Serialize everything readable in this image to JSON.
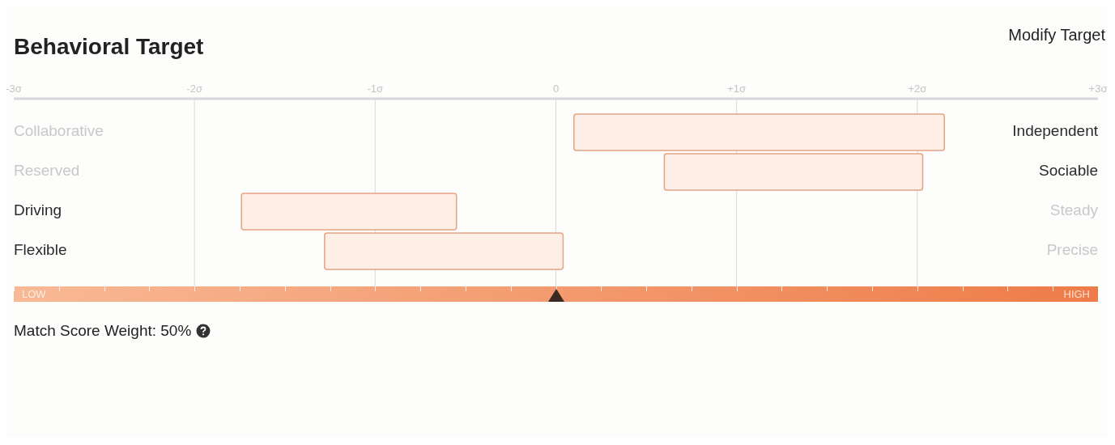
{
  "chart_data": {
    "type": "bar",
    "orientation": "horizontal",
    "title": "Behavioral Target",
    "categories": [
      "Collaborative",
      "Reserved",
      "Driving",
      "Flexible"
    ],
    "y2_categories": [
      "Independent",
      "Sociable",
      "Steady",
      "Precise"
    ],
    "values": [
      2.05,
      1.43,
      1.19,
      1.32
    ],
    "base": [
      0.1,
      0.6,
      -1.74,
      -1.28
    ],
    "color": "#fdeee6",
    "xlim": [
      -3,
      3
    ],
    "xticks": [
      {
        "value": -3,
        "label": "-3σ"
      },
      {
        "value": -2,
        "label": "-2σ"
      },
      {
        "value": -1,
        "label": "-1σ"
      },
      0,
      {
        "value": 1,
        "label": "+1σ"
      },
      {
        "value": 2,
        "label": "+2σ"
      },
      {
        "value": 3,
        "label": "+3σ"
      }
    ],
    "grid": "x",
    "annotations": [
      "Modify Target",
      "LOW",
      "HIGH",
      "Match Score Weight: 50%"
    ]
  }
}
